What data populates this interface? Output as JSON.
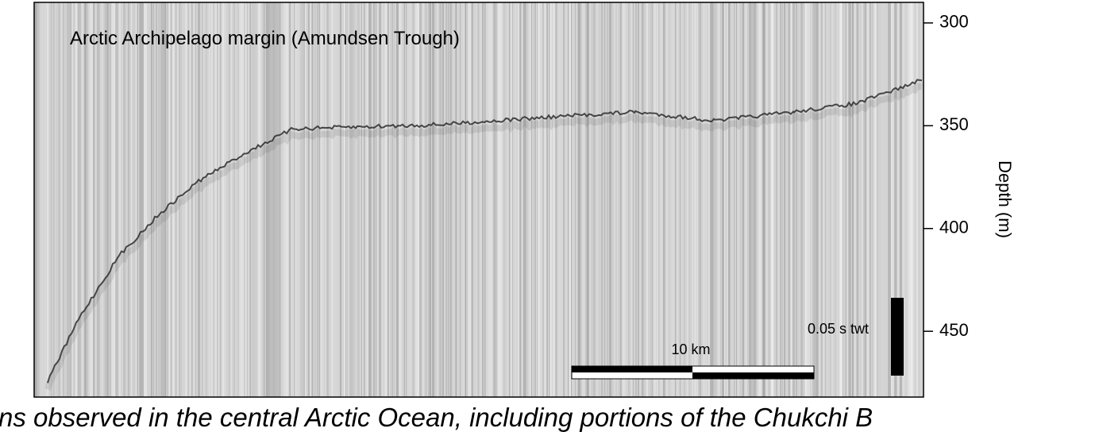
{
  "figure": {
    "title": "Arctic Archipelago margin (Amundsen Trough)",
    "axis_label": "Depth (m)",
    "ylim": [
      290,
      482
    ],
    "yticks": [
      300,
      350,
      400,
      450
    ],
    "scale_bar_horizontal": "10 km",
    "scale_bar_vertical": "0.05 s twt",
    "caption_fragment": "ns observed in the central Arctic Ocean, including portions of the Chukchi B"
  }
}
